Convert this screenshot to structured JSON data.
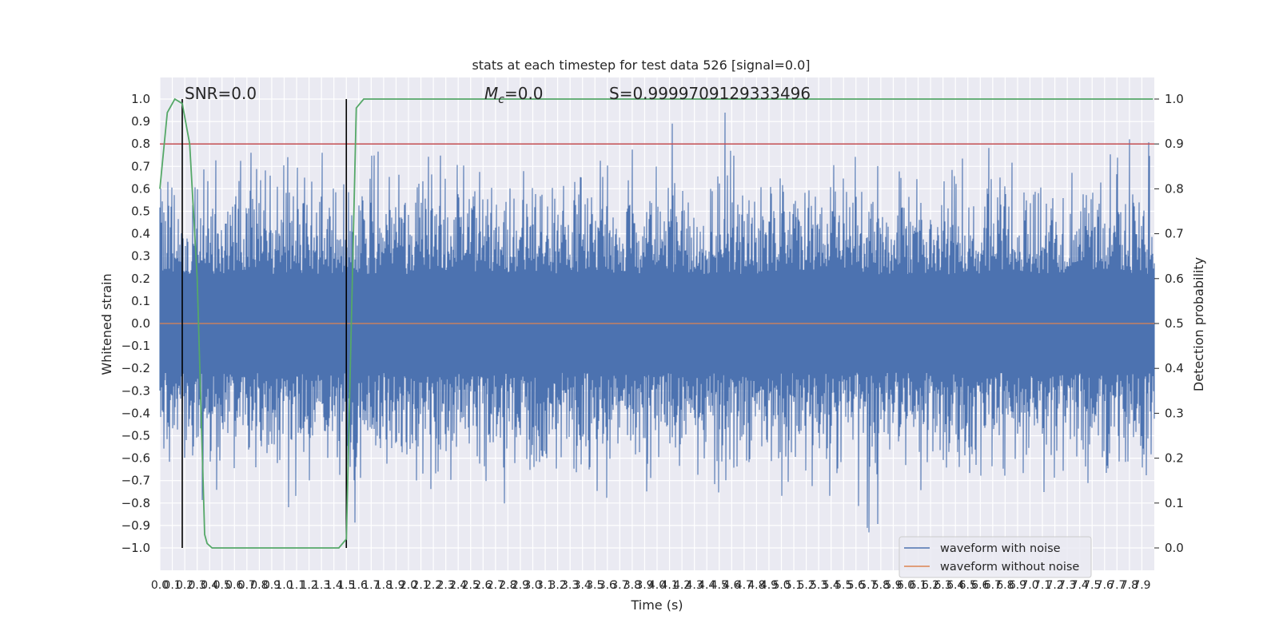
{
  "chart_data": {
    "type": "line",
    "title": "stats at each timestep for test data 526 [signal=0.0]",
    "xlabel": "Time (s)",
    "ylabel": "Whitened strain",
    "y2label": "Detection probability",
    "xlim": [
      0.0,
      8.0
    ],
    "ylim": [
      -1.1,
      1.1
    ],
    "y2lim": [
      -0.05,
      1.05
    ],
    "xticks": [
      "0.0",
      "0.1",
      "0.2",
      "0.3",
      "0.4",
      "0.5",
      "0.6",
      "0.7",
      "0.8",
      "0.9",
      "1.0",
      "1.1",
      "1.2",
      "1.3",
      "1.4",
      "1.5",
      "1.6",
      "1.7",
      "1.8",
      "1.9",
      "2.0",
      "2.1",
      "2.2",
      "2.3",
      "2.4",
      "2.5",
      "2.6",
      "2.7",
      "2.8",
      "2.9",
      "3.0",
      "3.1",
      "3.2",
      "3.3",
      "3.4",
      "3.5",
      "3.6",
      "3.7",
      "3.8",
      "3.9",
      "4.0",
      "4.1",
      "4.2",
      "4.3",
      "4.4",
      "4.5",
      "4.6",
      "4.7",
      "4.8",
      "4.9",
      "5.0",
      "5.1",
      "5.2",
      "5.3",
      "5.4",
      "5.5",
      "5.6",
      "5.7",
      "5.8",
      "5.9",
      "6.0",
      "6.1",
      "6.2",
      "6.3",
      "6.4",
      "6.5",
      "6.6",
      "6.7",
      "6.8",
      "6.9",
      "7.0",
      "7.1",
      "7.2",
      "7.3",
      "7.4",
      "7.5",
      "7.6",
      "7.7",
      "7.8",
      "7.9"
    ],
    "yticks": [
      "1.0",
      "0.9",
      "0.8",
      "0.7",
      "0.6",
      "0.5",
      "0.4",
      "0.3",
      "0.2",
      "0.1",
      "0.0",
      "−0.1",
      "−0.2",
      "−0.3",
      "−0.4",
      "−0.5",
      "−0.6",
      "−0.7",
      "−0.8",
      "−0.9",
      "−1.0"
    ],
    "yticks_values": [
      1.0,
      0.9,
      0.8,
      0.7,
      0.6,
      0.5,
      0.4,
      0.3,
      0.2,
      0.1,
      0.0,
      -0.1,
      -0.2,
      -0.3,
      -0.4,
      -0.5,
      -0.6,
      -0.7,
      -0.8,
      -0.9,
      -1.0
    ],
    "y2ticks": [
      "1.0",
      "0.9",
      "0.8",
      "0.7",
      "0.6",
      "0.5",
      "0.4",
      "0.3",
      "0.2",
      "0.1",
      "0.0"
    ],
    "y2ticks_values": [
      1.0,
      0.9,
      0.8,
      0.7,
      0.6,
      0.5,
      0.4,
      0.3,
      0.2,
      0.1,
      0.0
    ],
    "series": [
      {
        "name": "waveform with noise",
        "color": "#4c72b0",
        "description_amplitude": "dense noise, |peaks| up to ~1.0",
        "seed": 526
      },
      {
        "name": "waveform without noise",
        "color": "#dd8452",
        "values_constant": 0.0
      },
      {
        "role": "detection probability",
        "color": "#55a868",
        "axis": "right",
        "x": [
          0.0,
          0.06,
          0.12,
          0.18,
          0.24,
          0.3,
          0.36,
          0.38,
          0.42,
          0.5,
          0.6,
          0.8,
          1.0,
          1.2,
          1.3,
          1.44,
          1.5,
          1.54,
          1.58,
          1.64,
          2.0,
          3.0,
          4.0,
          5.0,
          6.0,
          7.0,
          7.99
        ],
        "y": [
          0.8,
          0.97,
          1.0,
          0.99,
          0.9,
          0.6,
          0.03,
          0.01,
          0.0,
          0.0,
          0.0,
          0.0,
          0.0,
          0.0,
          0.0,
          0.0,
          0.02,
          0.5,
          0.98,
          1.0,
          1.0,
          1.0,
          1.0,
          1.0,
          1.0,
          1.0,
          1.0
        ]
      }
    ],
    "threshold_line": {
      "axis": "right",
      "value": 0.9,
      "color": "#c44e52"
    },
    "vertical_lines": [
      0.18,
      1.5
    ],
    "annotations": {
      "snr": "SNR=0.0",
      "mc_symbol": "M",
      "mc_sub": "c",
      "mc_value": "=0.0",
      "s": "S=0.9999709129333496"
    },
    "legend": {
      "placement": "lower-right",
      "entries": [
        "waveform with noise",
        "waveform without noise"
      ]
    },
    "grid": true,
    "background": "#eaeaf2"
  }
}
